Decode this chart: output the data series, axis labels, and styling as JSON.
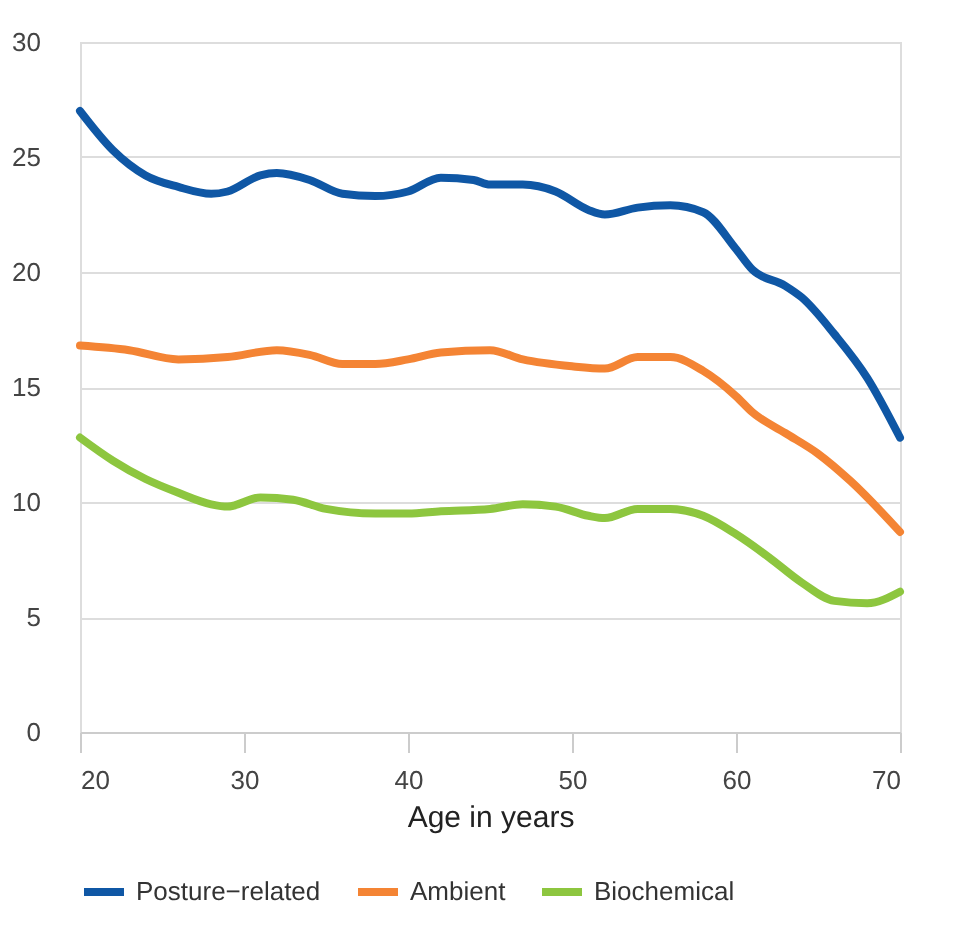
{
  "chart_data": {
    "type": "line",
    "xlabel": "Age in years",
    "xlim": [
      20,
      70
    ],
    "xticks": [
      20,
      30,
      40,
      50,
      60,
      70
    ],
    "ylim": [
      0,
      30
    ],
    "yticks": [
      0,
      5,
      10,
      15,
      20,
      25,
      30
    ],
    "grid": "y",
    "legend": "bottom",
    "marker": "none",
    "line_style": "solid",
    "series": [
      {
        "name": "Posture−related",
        "color": "#0f57a5",
        "x": [
          20,
          22,
          24,
          26,
          28,
          29,
          31,
          32,
          34,
          36,
          38,
          40,
          42,
          44,
          45,
          47,
          49,
          51,
          52,
          54,
          56,
          58,
          60,
          61,
          63,
          64,
          66,
          68,
          70
        ],
        "values": [
          27,
          25.3,
          24.2,
          23.7,
          23.4,
          23.5,
          24.2,
          24.3,
          24.0,
          23.4,
          23.3,
          23.5,
          24.1,
          24.0,
          23.8,
          23.8,
          23.5,
          22.7,
          22.5,
          22.8,
          22.9,
          22.6,
          21.0,
          20.1,
          19.4,
          18.9,
          17.3,
          15.4,
          12.8
        ]
      },
      {
        "name": "Ambient",
        "color": "#f48434",
        "x": [
          20,
          23,
          26,
          29,
          32,
          34,
          36,
          38,
          40,
          42,
          45,
          47,
          50,
          52,
          54,
          56,
          58,
          60,
          61,
          63,
          65,
          67,
          70
        ],
        "values": [
          16.8,
          16.6,
          16.2,
          16.3,
          16.6,
          16.4,
          16.0,
          16.0,
          16.2,
          16.5,
          16.6,
          16.2,
          15.9,
          15.8,
          16.3,
          16.3,
          15.7,
          14.6,
          13.9,
          13.0,
          12.1,
          10.9,
          8.7
        ]
      },
      {
        "name": "Biochemical",
        "color": "#8dc63f",
        "x": [
          20,
          22,
          24,
          26,
          28,
          29,
          31,
          33,
          35,
          38,
          40,
          42,
          45,
          47,
          49,
          51,
          52,
          54,
          56,
          58,
          60,
          62,
          64,
          66,
          68,
          70
        ],
        "values": [
          12.8,
          11.8,
          11.0,
          10.4,
          9.9,
          9.8,
          10.2,
          10.1,
          9.7,
          9.5,
          9.5,
          9.6,
          9.7,
          9.9,
          9.8,
          9.4,
          9.3,
          9.7,
          9.7,
          9.4,
          8.6,
          7.6,
          6.5,
          5.7,
          5.6,
          6.1
        ]
      }
    ]
  }
}
